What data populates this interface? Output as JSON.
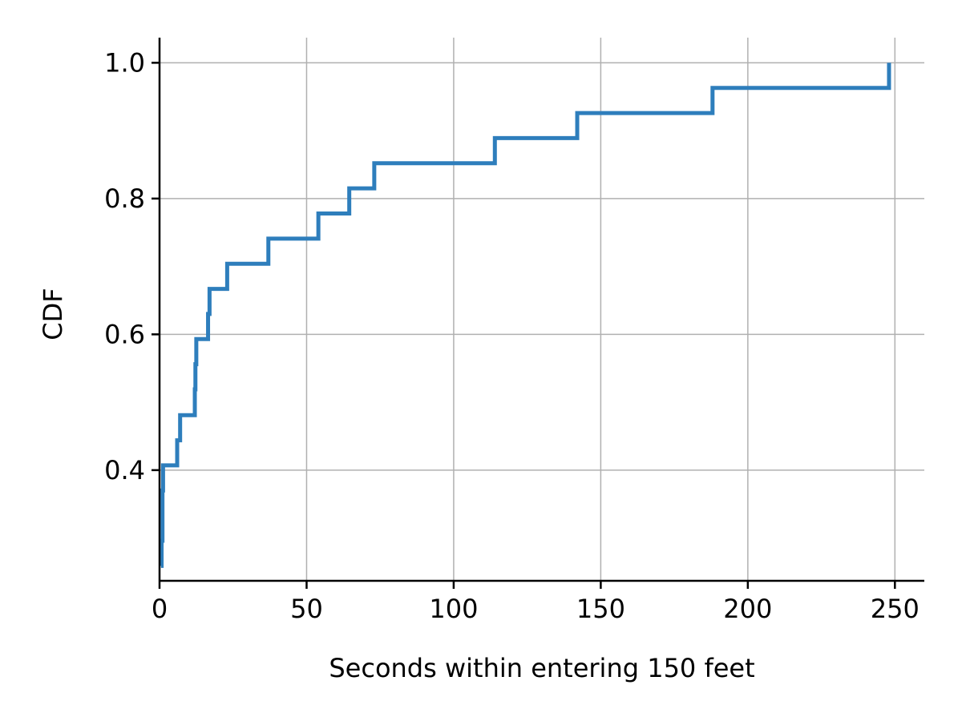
{
  "chart_data": {
    "type": "line",
    "step": "post",
    "xlabel": "Seconds within entering 150 feet",
    "ylabel": "CDF",
    "xlim": [
      0,
      260
    ],
    "ylim": [
      0.237,
      1.037
    ],
    "grid": true,
    "xticks": [
      0,
      50,
      100,
      150,
      200,
      250
    ],
    "xtick_labels": [
      "0",
      "50",
      "100",
      "150",
      "200",
      "250"
    ],
    "yticks": [
      0.4,
      0.6,
      0.8,
      1.0
    ],
    "ytick_labels": [
      "0.4",
      "0.6",
      "0.8",
      "1.0"
    ],
    "series": [
      {
        "color": "#2e7ebc",
        "x": [
          0.5,
          0.7,
          1,
          1.2,
          6,
          7,
          12,
          12.2,
          12.5,
          16.5,
          17,
          23,
          37,
          54,
          64.5,
          73,
          114,
          142,
          188,
          248
        ],
        "y": [
          0.259,
          0.296,
          0.37,
          0.407,
          0.444,
          0.481,
          0.519,
          0.556,
          0.593,
          0.63,
          0.667,
          0.704,
          0.741,
          0.778,
          0.815,
          0.852,
          0.889,
          0.926,
          0.963,
          1.0
        ]
      }
    ]
  }
}
